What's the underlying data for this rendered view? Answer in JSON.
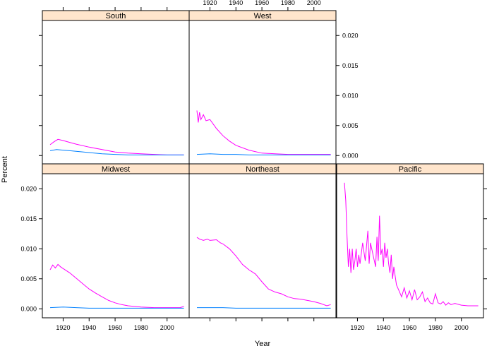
{
  "chart_data": {
    "type": "line",
    "xlabel": "Year",
    "ylabel": "Percent",
    "xlim": [
      1904,
      2017
    ],
    "ylim": [
      -0.0015,
      0.0225
    ],
    "x_ticks": [
      1920,
      1940,
      1960,
      1980,
      2000
    ],
    "y_ticks": [
      0.0,
      0.005,
      0.01,
      0.015,
      0.02
    ],
    "y_tick_labels": [
      "0.000",
      "0.005",
      "0.010",
      "0.015",
      "0.020"
    ],
    "strip_color": "#ffe5cc",
    "series_colors": {
      "series1": "#ff00ff",
      "series2": "#0080ff"
    },
    "panels": [
      {
        "title": "South",
        "series": [
          {
            "color": "#ff00ff",
            "x": [
              1910,
              1913,
              1916,
              1920,
              1925,
              1930,
              1940,
              1950,
              1960,
              1970,
              1980,
              1990,
              2000,
              2013
            ],
            "y": [
              0.0018,
              0.0023,
              0.0027,
              0.0025,
              0.0022,
              0.0019,
              0.0014,
              0.001,
              0.0006,
              0.0004,
              0.0003,
              0.0002,
              0.0001,
              0.0001
            ]
          },
          {
            "color": "#0080ff",
            "x": [
              1910,
              1915,
              1920,
              1925,
              1930,
              1940,
              1950,
              1960,
              1970,
              1980,
              2000,
              2013
            ],
            "y": [
              0.0008,
              0.001,
              0.0009,
              0.0008,
              0.0007,
              0.0005,
              0.0003,
              0.0002,
              0.0001,
              0.0001,
              0.0001,
              0.0001
            ]
          }
        ]
      },
      {
        "title": "West",
        "series": [
          {
            "color": "#ff00ff",
            "x": [
              1910,
              1911,
              1912,
              1913,
              1915,
              1917,
              1920,
              1925,
              1930,
              1935,
              1940,
              1950,
              1960,
              1970,
              1980,
              1990,
              2000,
              2013
            ],
            "y": [
              0.0075,
              0.0055,
              0.0072,
              0.006,
              0.0068,
              0.0058,
              0.006,
              0.0045,
              0.0033,
              0.0024,
              0.0017,
              0.0009,
              0.0004,
              0.0003,
              0.0002,
              0.0002,
              0.0002,
              0.0002
            ]
          },
          {
            "color": "#0080ff",
            "x": [
              1910,
              1920,
              1930,
              1940,
              1950,
              1960,
              1980,
              2000,
              2013
            ],
            "y": [
              0.0002,
              0.0003,
              0.0002,
              0.0002,
              0.0001,
              0.0001,
              0.0001,
              0.0001,
              0.0001
            ]
          }
        ]
      },
      {
        "title": "Midwest",
        "series": [
          {
            "color": "#ff00ff",
            "x": [
              1910,
              1912,
              1914,
              1916,
              1918,
              1920,
              1925,
              1930,
              1935,
              1940,
              1945,
              1950,
              1955,
              1960,
              1965,
              1970,
              1980,
              1990,
              2000,
              2010,
              2013
            ],
            "y": [
              0.0065,
              0.0073,
              0.0068,
              0.0074,
              0.007,
              0.0067,
              0.006,
              0.0051,
              0.0042,
              0.0033,
              0.0026,
              0.002,
              0.0014,
              0.001,
              0.0007,
              0.0005,
              0.0003,
              0.0002,
              0.0002,
              0.0002,
              0.0004
            ]
          },
          {
            "color": "#0080ff",
            "x": [
              1910,
              1920,
              1930,
              1940,
              1960,
              1980,
              2000,
              2013
            ],
            "y": [
              0.0002,
              0.0003,
              0.0002,
              0.0001,
              0.0001,
              0.0001,
              0.0001,
              0.0001
            ]
          }
        ]
      },
      {
        "title": "Northeast",
        "series": [
          {
            "color": "#ff00ff",
            "x": [
              1910,
              1912,
              1915,
              1918,
              1920,
              1925,
              1928,
              1930,
              1935,
              1940,
              1945,
              1950,
              1955,
              1960,
              1965,
              1970,
              1975,
              1980,
              1985,
              1990,
              1995,
              2000,
              2005,
              2010,
              2013
            ],
            "y": [
              0.0119,
              0.0116,
              0.0114,
              0.0116,
              0.0114,
              0.0115,
              0.011,
              0.0108,
              0.01,
              0.0088,
              0.0074,
              0.0065,
              0.0058,
              0.0045,
              0.0033,
              0.0028,
              0.0025,
              0.002,
              0.0017,
              0.0016,
              0.0014,
              0.0012,
              0.0009,
              0.0005,
              0.0007
            ]
          },
          {
            "color": "#0080ff",
            "x": [
              1910,
              1920,
              1930,
              1940,
              1960,
              1980,
              2000,
              2013
            ],
            "y": [
              0.0002,
              0.0002,
              0.0002,
              0.0001,
              0.0001,
              0.0001,
              0.0001,
              0.0001
            ]
          }
        ]
      },
      {
        "title": "Pacific",
        "series": [
          {
            "color": "#ff00ff",
            "x": [
              1910,
              1911,
              1912,
              1913,
              1914,
              1915,
              1916,
              1917,
              1918,
              1919,
              1920,
              1921,
              1922,
              1924,
              1926,
              1928,
              1929,
              1930,
              1931,
              1932,
              1934,
              1935,
              1936,
              1937,
              1938,
              1939,
              1940,
              1941,
              1942,
              1943,
              1944,
              1945,
              1946,
              1947,
              1948,
              1950,
              1952,
              1954,
              1956,
              1958,
              1960,
              1962,
              1964,
              1966,
              1968,
              1970,
              1972,
              1974,
              1976,
              1978,
              1980,
              1982,
              1984,
              1986,
              1988,
              1990,
              1992,
              1995,
              2000,
              2005,
              2013
            ],
            "y": [
              0.021,
              0.018,
              0.012,
              0.007,
              0.01,
              0.006,
              0.01,
              0.0065,
              0.008,
              0.01,
              0.007,
              0.009,
              0.0075,
              0.011,
              0.008,
              0.013,
              0.0075,
              0.011,
              0.01,
              0.009,
              0.007,
              0.012,
              0.008,
              0.0155,
              0.009,
              0.01,
              0.007,
              0.011,
              0.0085,
              0.01,
              0.0075,
              0.006,
              0.009,
              0.005,
              0.007,
              0.004,
              0.003,
              0.002,
              0.0035,
              0.0018,
              0.003,
              0.0015,
              0.0032,
              0.0015,
              0.002,
              0.0028,
              0.0012,
              0.0018,
              0.001,
              0.0008,
              0.0025,
              0.001,
              0.0008,
              0.0012,
              0.0006,
              0.001,
              0.0007,
              0.0009,
              0.0006,
              0.0005,
              0.0005
            ]
          }
        ]
      }
    ]
  }
}
